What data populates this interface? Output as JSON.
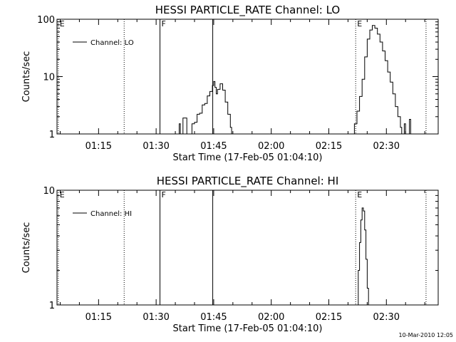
{
  "chart_data": [
    {
      "type": "line",
      "title": "HESSI PARTICLE_RATE Channel: LO",
      "xlabel": "Start Time (17-Feb-05 01:04:10)",
      "ylabel": "Counts/sec",
      "yscale": "log",
      "ylim": [
        1,
        100
      ],
      "y_ticks": [
        {
          "v": 1,
          "label": "1"
        },
        {
          "v": 10,
          "label": "10"
        },
        {
          "v": 100,
          "label": "100"
        }
      ],
      "xlim": [
        "01:04:10",
        "02:43:30"
      ],
      "x_ticks": [
        {
          "t": "01:15",
          "label": "01:15"
        },
        {
          "t": "01:30",
          "label": "01:30"
        },
        {
          "t": "01:45",
          "label": "01:45"
        },
        {
          "t": "02:00",
          "label": "02:00"
        },
        {
          "t": "02:15",
          "label": "02:15"
        },
        {
          "t": "02:30",
          "label": "02:30"
        }
      ],
      "legend": {
        "placement": "top-left",
        "entries": [
          "Channel: LO"
        ]
      },
      "event_lines": [
        {
          "time": "01:04:30",
          "style": "dotted",
          "label": "E"
        },
        {
          "time": "01:21:40",
          "style": "dotted",
          "label": ""
        },
        {
          "time": "01:31:00",
          "style": "solid",
          "label": "F"
        },
        {
          "time": "01:44:45",
          "style": "solid",
          "label": ""
        },
        {
          "time": "02:22:00",
          "style": "dotted",
          "label": "E"
        },
        {
          "time": "02:40:20",
          "style": "dotted",
          "label": ""
        }
      ],
      "series": [
        {
          "name": "Channel: LO",
          "points": [
            [
              "01:35:40",
              1.0
            ],
            [
              "01:36:00",
              1.5
            ],
            [
              "01:36:20",
              1.0
            ],
            [
              "01:37:00",
              1.9
            ],
            [
              "01:37:40",
              1.9
            ],
            [
              "01:38:00",
              1.0
            ],
            [
              "01:39:00",
              1.0
            ],
            [
              "01:39:20",
              1.5
            ],
            [
              "01:40:00",
              1.6
            ],
            [
              "01:40:40",
              2.2
            ],
            [
              "01:41:20",
              2.3
            ],
            [
              "01:42:00",
              3.2
            ],
            [
              "01:42:40",
              3.4
            ],
            [
              "01:43:20",
              4.6
            ],
            [
              "01:44:00",
              5.5
            ],
            [
              "01:44:40",
              7.0
            ],
            [
              "01:45:00",
              8.2
            ],
            [
              "01:45:20",
              6.5
            ],
            [
              "01:45:40",
              5.0
            ],
            [
              "01:46:00",
              6.0
            ],
            [
              "01:46:40",
              7.5
            ],
            [
              "01:47:20",
              5.8
            ],
            [
              "01:48:00",
              3.6
            ],
            [
              "01:48:40",
              2.2
            ],
            [
              "01:49:20",
              1.3
            ],
            [
              "01:49:40",
              1.0
            ],
            [
              "02:21:00",
              1.0
            ],
            [
              "02:21:40",
              1.5
            ],
            [
              "02:22:20",
              2.5
            ],
            [
              "02:23:00",
              4.5
            ],
            [
              "02:23:40",
              9.0
            ],
            [
              "02:24:20",
              22
            ],
            [
              "02:25:00",
              45
            ],
            [
              "02:25:40",
              65
            ],
            [
              "02:26:20",
              78
            ],
            [
              "02:27:00",
              70
            ],
            [
              "02:27:40",
              55
            ],
            [
              "02:28:20",
              40
            ],
            [
              "02:29:00",
              28
            ],
            [
              "02:29:40",
              19
            ],
            [
              "02:30:20",
              12
            ],
            [
              "02:31:00",
              8
            ],
            [
              "02:31:40",
              5
            ],
            [
              "02:32:20",
              3
            ],
            [
              "02:33:00",
              2
            ],
            [
              "02:33:40",
              1.3
            ],
            [
              "02:34:00",
              1.0
            ],
            [
              "02:34:20",
              1.0
            ],
            [
              "02:34:40",
              1.5
            ],
            [
              "02:35:00",
              1.0
            ],
            [
              "02:35:40",
              1.0
            ],
            [
              "02:36:00",
              1.8
            ],
            [
              "02:36:20",
              1.0
            ]
          ]
        }
      ]
    },
    {
      "type": "line",
      "title": "HESSI PARTICLE_RATE Channel: HI",
      "xlabel": "Start Time (17-Feb-05 01:04:10)",
      "ylabel": "Counts/sec",
      "yscale": "log",
      "ylim": [
        1,
        10
      ],
      "y_ticks": [
        {
          "v": 1,
          "label": "1"
        },
        {
          "v": 10,
          "label": "10"
        }
      ],
      "xlim": [
        "01:04:10",
        "02:43:30"
      ],
      "x_ticks": [
        {
          "t": "01:15",
          "label": "01:15"
        },
        {
          "t": "01:30",
          "label": "01:30"
        },
        {
          "t": "01:45",
          "label": "01:45"
        },
        {
          "t": "02:00",
          "label": "02:00"
        },
        {
          "t": "02:15",
          "label": "02:15"
        },
        {
          "t": "02:30",
          "label": "02:30"
        }
      ],
      "legend": {
        "placement": "top-left",
        "entries": [
          "Channel: HI"
        ]
      },
      "event_lines": [
        {
          "time": "01:04:30",
          "style": "dotted",
          "label": "E"
        },
        {
          "time": "01:21:40",
          "style": "dotted",
          "label": ""
        },
        {
          "time": "01:31:00",
          "style": "solid",
          "label": "F"
        },
        {
          "time": "01:44:45",
          "style": "solid",
          "label": ""
        },
        {
          "time": "02:22:00",
          "style": "dotted",
          "label": "E"
        },
        {
          "time": "02:40:20",
          "style": "dotted",
          "label": ""
        }
      ],
      "series": [
        {
          "name": "Channel: HI",
          "points": [
            [
              "02:22:20",
              1.0
            ],
            [
              "02:22:40",
              2.0
            ],
            [
              "02:23:00",
              3.5
            ],
            [
              "02:23:20",
              5.5
            ],
            [
              "02:23:40",
              7.0
            ],
            [
              "02:24:00",
              6.6
            ],
            [
              "02:24:20",
              4.5
            ],
            [
              "02:24:40",
              2.5
            ],
            [
              "02:25:00",
              1.4
            ],
            [
              "02:25:20",
              1.0
            ]
          ]
        }
      ]
    }
  ],
  "footer": {
    "timestamp": "10-Mar-2010 12:05"
  },
  "colors": {
    "ink": "#000000",
    "background": "#ffffff"
  }
}
